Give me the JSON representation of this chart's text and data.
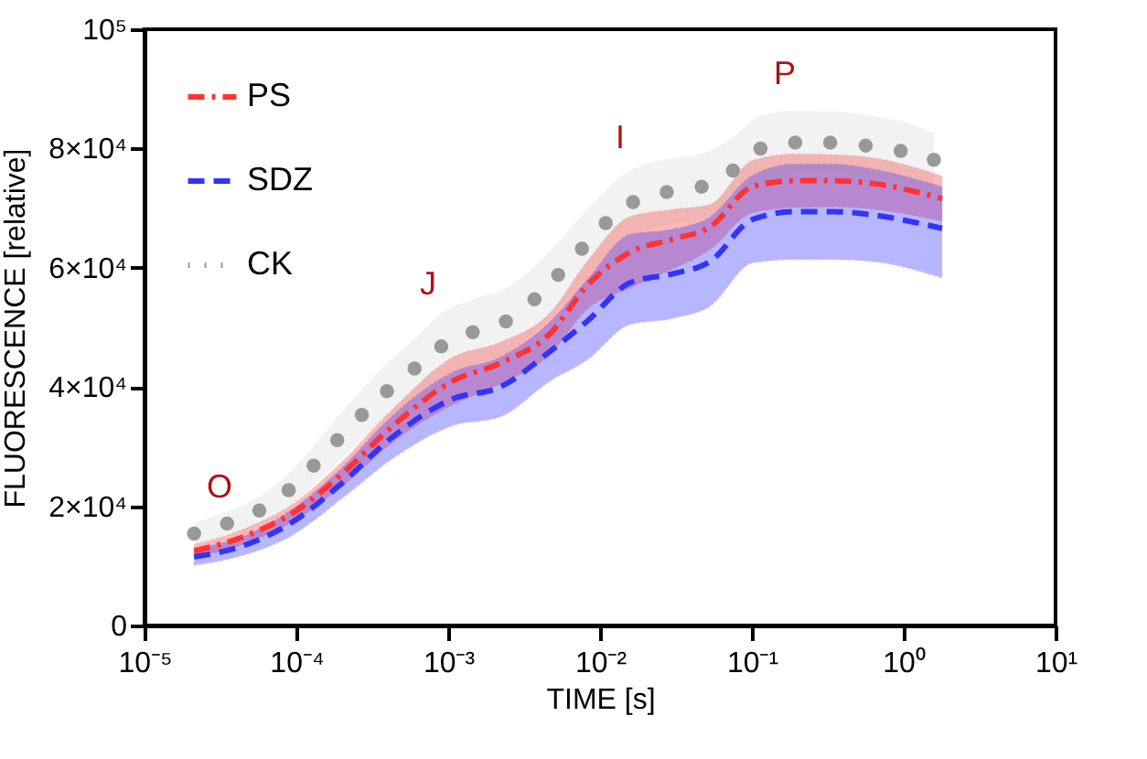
{
  "chart_data": {
    "type": "line",
    "xlabel": "TIME [s]",
    "ylabel": "FLUORESCENCE [relative]",
    "log": "x",
    "grid": false,
    "legend": "top left",
    "xlim": [
      1e-05,
      10
    ],
    "ylim": [
      0,
      100000
    ],
    "xticks": [
      {
        "value": 1e-05,
        "label": "10⁻⁵"
      },
      {
        "value": 0.0001,
        "label": "10⁻⁴"
      },
      {
        "value": 0.001,
        "label": "10⁻³"
      },
      {
        "value": 0.01,
        "label": "10⁻²"
      },
      {
        "value": 0.1,
        "label": "10⁻¹"
      },
      {
        "value": 1,
        "label": "10⁰"
      },
      {
        "value": 10,
        "label": "10¹"
      }
    ],
    "yticks": [
      0,
      {
        "value": 20000,
        "label": "2×10⁴"
      },
      {
        "value": 40000,
        "label": "4×10⁴"
      },
      {
        "value": 60000,
        "label": "6×10⁴"
      },
      {
        "value": 80000,
        "label": "8×10⁴"
      },
      {
        "value": 100000,
        "label": "10⁵"
      }
    ],
    "annotations": [
      "O",
      "J",
      "I",
      "P"
    ],
    "series": [
      {
        "name": "PS",
        "line_style": "dashdot",
        "color": "#ff3333",
        "x": [
          2.12e-05,
          4.5e-05,
          9.5e-05,
          0.0002,
          0.00042,
          0.00107,
          0.0022,
          0.0047,
          0.0082,
          0.0158,
          0.0302,
          0.0527,
          0.101,
          0.193,
          0.337,
          0.645,
          1.79
        ],
        "values": [
          12500,
          14900,
          18900,
          25400,
          33200,
          41000,
          44000,
          49000,
          57000,
          62600,
          64800,
          66800,
          73600,
          74600,
          74600,
          74100,
          71600
        ],
        "upper": [
          13600,
          16200,
          20400,
          27500,
          36000,
          45000,
          47500,
          52500,
          61000,
          68600,
          69800,
          70600,
          78000,
          79100,
          79000,
          78400,
          75400
        ],
        "lower": [
          11400,
          13600,
          17400,
          23300,
          30500,
          37000,
          40500,
          45500,
          53000,
          56600,
          59800,
          63000,
          69200,
          70100,
          70200,
          69800,
          67800
        ]
      },
      {
        "name": "SDZ",
        "line_style": "dashed",
        "color": "#3333ff",
        "x": [
          2.12e-05,
          4.5e-05,
          9.5e-05,
          0.0002,
          0.00042,
          0.00107,
          0.0022,
          0.0047,
          0.0082,
          0.0158,
          0.0302,
          0.0527,
          0.101,
          0.193,
          0.337,
          0.645,
          1.79
        ],
        "values": [
          11500,
          13400,
          17400,
          23900,
          31400,
          38000,
          40000,
          46000,
          51000,
          57500,
          59000,
          61000,
          68100,
          69400,
          69400,
          68800,
          66600
        ],
        "upper": [
          12900,
          15000,
          19600,
          26500,
          35000,
          42500,
          45000,
          51000,
          58000,
          65600,
          66500,
          68500,
          75500,
          77400,
          77400,
          76500,
          73600
        ],
        "lower": [
          10100,
          11800,
          15200,
          21300,
          27800,
          33500,
          35000,
          41000,
          44500,
          50500,
          51500,
          53500,
          60800,
          61400,
          61400,
          61000,
          58300
        ]
      },
      {
        "name": "CK",
        "type": "scatter",
        "marker": "circle",
        "color": "#999999",
        "x": [
          2.12e-05,
          3.5e-05,
          5.7e-05,
          8.9e-05,
          0.00013,
          0.000186,
          0.00027,
          0.000395,
          0.0006,
          0.0009,
          0.00145,
          0.0024,
          0.0037,
          0.0053,
          0.0076,
          0.0109,
          0.0165,
          0.0275,
          0.0467,
          0.075,
          0.114,
          0.193,
          0.328,
          0.562,
          0.955,
          1.58
        ],
        "values": [
          15400,
          17100,
          19300,
          22700,
          26800,
          31100,
          35300,
          39300,
          43100,
          46800,
          49200,
          51000,
          54700,
          58800,
          63200,
          67500,
          71000,
          72700,
          73600,
          76300,
          80000,
          81000,
          81000,
          80500,
          79600,
          78100
        ],
        "upper": [
          17200,
          19100,
          21600,
          25500,
          30100,
          34900,
          39500,
          43900,
          48100,
          52300,
          54700,
          56500,
          60200,
          64300,
          68700,
          73000,
          76500,
          78200,
          79100,
          81800,
          85500,
          86300,
          86200,
          85600,
          84600,
          82600
        ],
        "lower": [
          13600,
          15100,
          17000,
          19900,
          23500,
          27300,
          31100,
          34700,
          38100,
          41300,
          43700,
          45500,
          49200,
          53300,
          57700,
          62000,
          65500,
          67200,
          68100,
          70800,
          74500,
          75700,
          75800,
          75400,
          74600,
          73600
        ]
      }
    ]
  }
}
